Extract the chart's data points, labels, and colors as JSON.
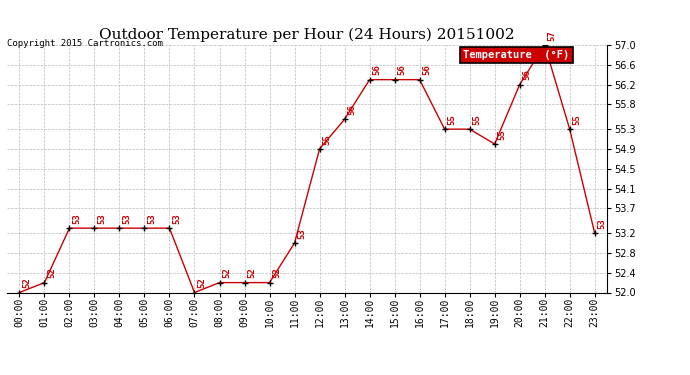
{
  "title": "Outdoor Temperature per Hour (24 Hours) 20151002",
  "copyright": "Copyright 2015 Cartronics.com",
  "legend_label": "Temperature  (°F)",
  "hours": [
    "00:00",
    "01:00",
    "02:00",
    "03:00",
    "04:00",
    "05:00",
    "06:00",
    "07:00",
    "08:00",
    "09:00",
    "10:00",
    "11:00",
    "12:00",
    "13:00",
    "14:00",
    "15:00",
    "16:00",
    "17:00",
    "18:00",
    "19:00",
    "20:00",
    "21:00",
    "22:00",
    "23:00"
  ],
  "temps": [
    52.0,
    52.2,
    53.3,
    53.3,
    53.3,
    53.3,
    53.3,
    52.0,
    52.2,
    52.2,
    52.2,
    53.0,
    54.9,
    55.5,
    56.3,
    56.3,
    56.3,
    55.3,
    55.3,
    55.0,
    56.2,
    57.0,
    55.3,
    53.2
  ],
  "ylim": [
    52.0,
    57.0
  ],
  "yticks": [
    52.0,
    52.4,
    52.8,
    53.2,
    53.7,
    54.1,
    54.5,
    54.9,
    55.3,
    55.8,
    56.2,
    56.6,
    57.0
  ],
  "line_color": "#cc0000",
  "marker_color": "#000000",
  "legend_bg": "#cc0000",
  "legend_fg": "#ffffff",
  "background_color": "#ffffff",
  "grid_color": "#bbbbbb",
  "title_fontsize": 11,
  "label_fontsize": 7,
  "annot_fontsize": 6.5,
  "copyright_fontsize": 6.5
}
